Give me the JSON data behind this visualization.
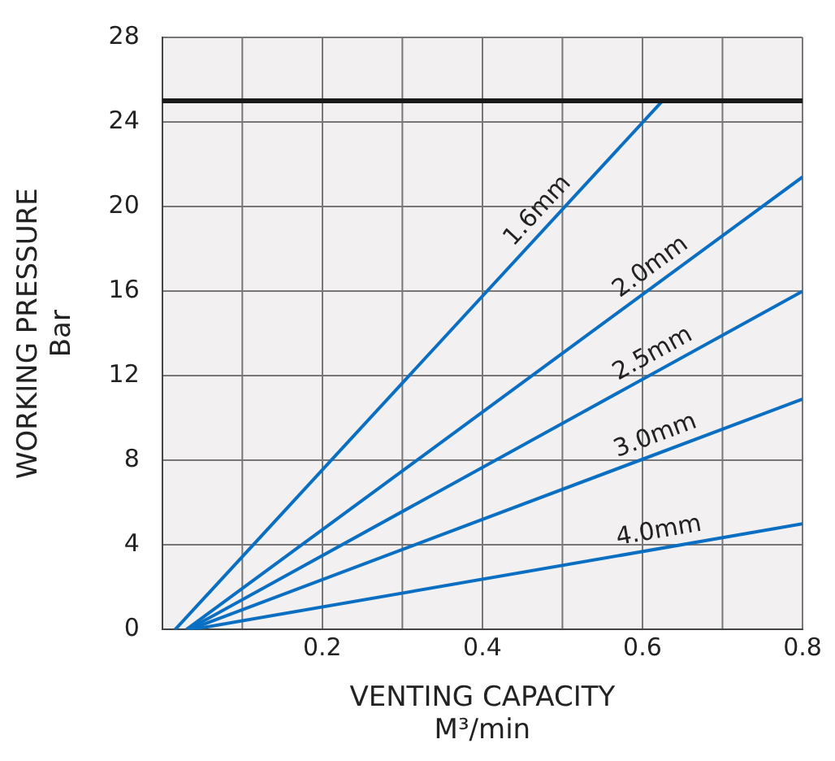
{
  "chart_data": {
    "type": "line",
    "xlabel": "VENTING CAPACITY\nM³/min",
    "ylabel": "WORKING PRESSURE\nBar",
    "xlim": [
      0,
      0.8
    ],
    "xticks": [
      {
        "value": 0,
        "label": null
      },
      0.2,
      0.4,
      0.6,
      0.8
    ],
    "ylim": [
      0,
      28
    ],
    "yticks": [
      0,
      4,
      8,
      12,
      16,
      20,
      24,
      28
    ],
    "grid": true,
    "legend": false,
    "marker": "none",
    "line_style": "solid",
    "ref_lines": [
      {
        "axis": "y",
        "value": 25,
        "color": "#1a1a1a"
      }
    ],
    "series": [
      {
        "name": "1.6mm",
        "color": "#0a6fc2",
        "x": [
          0.016,
          0.625
        ],
        "values": [
          0,
          25
        ]
      },
      {
        "name": "2.0mm",
        "color": "#0a6fc2",
        "x": [
          0.03,
          0.8
        ],
        "values": [
          0,
          21.4
        ]
      },
      {
        "name": "2.5mm",
        "color": "#0a6fc2",
        "x": [
          0.032,
          0.8
        ],
        "values": [
          0,
          16
        ]
      },
      {
        "name": "3.0mm",
        "color": "#0a6fc2",
        "x": [
          0.034,
          0.8
        ],
        "values": [
          0,
          10.9
        ]
      },
      {
        "name": "4.0mm",
        "color": "#0a6fc2",
        "x": [
          0.036,
          0.8
        ],
        "values": [
          0,
          5
        ]
      }
    ]
  }
}
